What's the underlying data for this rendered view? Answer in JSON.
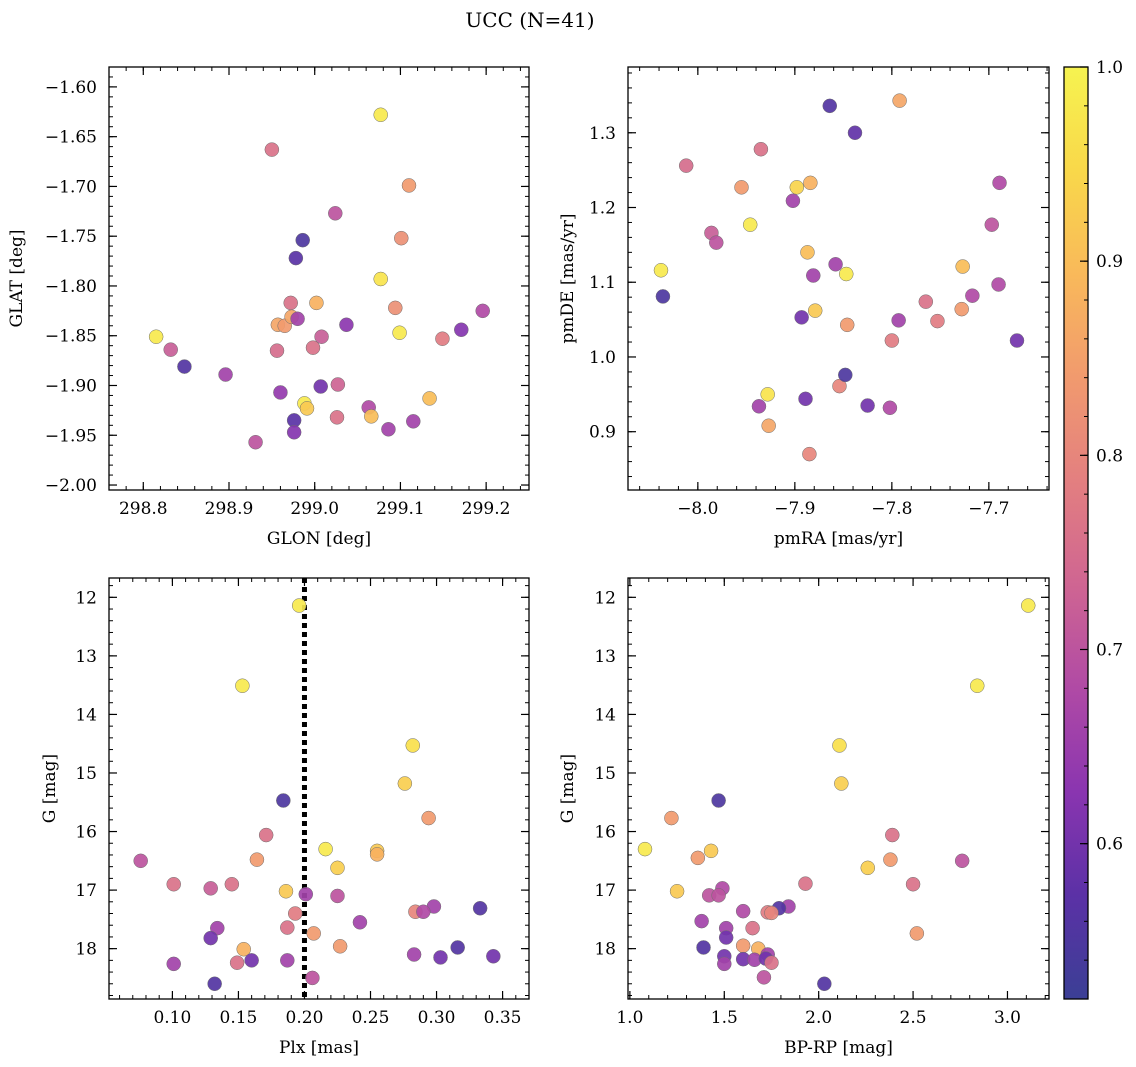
{
  "figure": {
    "title": "UCC (N=41)"
  },
  "colormap": {
    "name": "plasma",
    "range": [
      0.52,
      1.0
    ],
    "ticks": [
      "0.6",
      "0.7",
      "0.8",
      "0.9",
      "1.0"
    ],
    "tick_values": [
      0.6,
      0.7,
      0.8,
      0.9,
      1.0
    ],
    "stops": [
      "#3b3f95",
      "#5b31a6",
      "#8a35b0",
      "#b04aa5",
      "#cf6592",
      "#e37f80",
      "#f19a6e",
      "#f9b95a",
      "#f9d84a",
      "#f6f350"
    ]
  },
  "chart_data": [
    {
      "type": "scatter",
      "xlabel": "GLON [deg]",
      "ylabel": "GLAT [deg]",
      "xlim": [
        298.76,
        299.25
      ],
      "ylim": [
        -2.005,
        -1.58
      ],
      "xticks": [
        298.8,
        298.9,
        299.0,
        299.1,
        299.2
      ],
      "xtick_labels": [
        "298.8",
        "298.9",
        "299.0",
        "299.1",
        "299.2"
      ],
      "yticks": [
        -1.6,
        -1.65,
        -1.7,
        -1.75,
        -1.8,
        -1.85,
        -1.9,
        -1.95,
        -2.0
      ],
      "ytick_labels": [
        "−1.60",
        "−1.65",
        "−1.70",
        "−1.75",
        "−1.80",
        "−1.85",
        "−1.90",
        "−1.95",
        "−2.00"
      ],
      "points": [
        {
          "x": 298.815,
          "y": -1.851,
          "c": 0.98
        },
        {
          "x": 298.832,
          "y": -1.864,
          "c": 0.72
        },
        {
          "x": 298.848,
          "y": -1.881,
          "c": 0.56
        },
        {
          "x": 298.896,
          "y": -1.889,
          "c": 0.66
        },
        {
          "x": 298.931,
          "y": -1.957,
          "c": 0.7
        },
        {
          "x": 298.95,
          "y": -1.663,
          "c": 0.76
        },
        {
          "x": 298.956,
          "y": -1.865,
          "c": 0.75
        },
        {
          "x": 298.957,
          "y": -1.839,
          "c": 0.86
        },
        {
          "x": 298.96,
          "y": -1.907,
          "c": 0.64
        },
        {
          "x": 298.965,
          "y": -1.84,
          "c": 0.84
        },
        {
          "x": 298.972,
          "y": -1.817,
          "c": 0.76
        },
        {
          "x": 298.973,
          "y": -1.831,
          "c": 0.86
        },
        {
          "x": 298.976,
          "y": -1.935,
          "c": 0.57
        },
        {
          "x": 298.976,
          "y": -1.947,
          "c": 0.62
        },
        {
          "x": 298.978,
          "y": -1.772,
          "c": 0.57
        },
        {
          "x": 298.98,
          "y": -1.833,
          "c": 0.66
        },
        {
          "x": 298.986,
          "y": -1.754,
          "c": 0.55
        },
        {
          "x": 298.988,
          "y": -1.918,
          "c": 0.98
        },
        {
          "x": 298.991,
          "y": -1.923,
          "c": 0.92
        },
        {
          "x": 298.998,
          "y": -1.862,
          "c": 0.76
        },
        {
          "x": 299.002,
          "y": -1.817,
          "c": 0.88
        },
        {
          "x": 299.007,
          "y": -1.901,
          "c": 0.6
        },
        {
          "x": 299.008,
          "y": -1.851,
          "c": 0.72
        },
        {
          "x": 299.024,
          "y": -1.727,
          "c": 0.7
        },
        {
          "x": 299.026,
          "y": -1.932,
          "c": 0.76
        },
        {
          "x": 299.027,
          "y": -1.899,
          "c": 0.73
        },
        {
          "x": 299.037,
          "y": -1.839,
          "c": 0.63
        },
        {
          "x": 299.063,
          "y": -1.922,
          "c": 0.68
        },
        {
          "x": 299.066,
          "y": -1.931,
          "c": 0.9
        },
        {
          "x": 299.077,
          "y": -1.628,
          "c": 0.98
        },
        {
          "x": 299.077,
          "y": -1.793,
          "c": 0.97
        },
        {
          "x": 299.086,
          "y": -1.944,
          "c": 0.66
        },
        {
          "x": 299.094,
          "y": -1.822,
          "c": 0.82
        },
        {
          "x": 299.099,
          "y": -1.847,
          "c": 0.98
        },
        {
          "x": 299.101,
          "y": -1.752,
          "c": 0.82
        },
        {
          "x": 299.11,
          "y": -1.699,
          "c": 0.84
        },
        {
          "x": 299.115,
          "y": -1.936,
          "c": 0.66
        },
        {
          "x": 299.134,
          "y": -1.913,
          "c": 0.9
        },
        {
          "x": 299.149,
          "y": -1.853,
          "c": 0.78
        },
        {
          "x": 299.171,
          "y": -1.844,
          "c": 0.62
        },
        {
          "x": 299.196,
          "y": -1.825,
          "c": 0.68
        }
      ]
    },
    {
      "type": "scatter",
      "xlabel": "pmRA [mas/yr]",
      "ylabel": "pmDE [mas/yr]",
      "xlim": [
        -8.072,
        -7.638
      ],
      "ylim": [
        0.822,
        1.388
      ],
      "xticks": [
        -8.0,
        -7.9,
        -7.8,
        -7.7
      ],
      "xtick_labels": [
        "−8.0",
        "−7.9",
        "−7.8",
        "−7.7"
      ],
      "yticks": [
        0.9,
        1.0,
        1.1,
        1.2,
        1.3
      ],
      "ytick_labels": [
        "0.9",
        "1.0",
        "1.1",
        "1.2",
        "1.3"
      ],
      "points": [
        {
          "x": -8.038,
          "y": 1.116,
          "c": 0.98
        },
        {
          "x": -8.036,
          "y": 1.081,
          "c": 0.55
        },
        {
          "x": -8.012,
          "y": 1.256,
          "c": 0.75
        },
        {
          "x": -7.986,
          "y": 1.166,
          "c": 0.72
        },
        {
          "x": -7.981,
          "y": 1.153,
          "c": 0.7
        },
        {
          "x": -7.955,
          "y": 1.227,
          "c": 0.84
        },
        {
          "x": -7.946,
          "y": 1.177,
          "c": 0.98
        },
        {
          "x": -7.937,
          "y": 0.934,
          "c": 0.66
        },
        {
          "x": -7.935,
          "y": 1.278,
          "c": 0.76
        },
        {
          "x": -7.928,
          "y": 0.95,
          "c": 0.97
        },
        {
          "x": -7.927,
          "y": 0.908,
          "c": 0.86
        },
        {
          "x": -7.902,
          "y": 1.209,
          "c": 0.66
        },
        {
          "x": -7.898,
          "y": 1.227,
          "c": 0.94
        },
        {
          "x": -7.893,
          "y": 1.053,
          "c": 0.6
        },
        {
          "x": -7.889,
          "y": 0.944,
          "c": 0.6
        },
        {
          "x": -7.887,
          "y": 1.14,
          "c": 0.9
        },
        {
          "x": -7.885,
          "y": 0.87,
          "c": 0.8
        },
        {
          "x": -7.884,
          "y": 1.233,
          "c": 0.88
        },
        {
          "x": -7.881,
          "y": 1.109,
          "c": 0.66
        },
        {
          "x": -7.879,
          "y": 1.062,
          "c": 0.92
        },
        {
          "x": -7.864,
          "y": 1.336,
          "c": 0.56
        },
        {
          "x": -7.858,
          "y": 1.124,
          "c": 0.66
        },
        {
          "x": -7.854,
          "y": 0.961,
          "c": 0.8
        },
        {
          "x": -7.848,
          "y": 0.976,
          "c": 0.55
        },
        {
          "x": -7.847,
          "y": 1.111,
          "c": 0.98
        },
        {
          "x": -7.846,
          "y": 1.043,
          "c": 0.84
        },
        {
          "x": -7.838,
          "y": 1.3,
          "c": 0.58
        },
        {
          "x": -7.825,
          "y": 0.935,
          "c": 0.6
        },
        {
          "x": -7.802,
          "y": 0.932,
          "c": 0.68
        },
        {
          "x": -7.8,
          "y": 1.022,
          "c": 0.78
        },
        {
          "x": -7.793,
          "y": 1.049,
          "c": 0.66
        },
        {
          "x": -7.792,
          "y": 1.343,
          "c": 0.86
        },
        {
          "x": -7.765,
          "y": 1.074,
          "c": 0.76
        },
        {
          "x": -7.753,
          "y": 1.048,
          "c": 0.78
        },
        {
          "x": -7.728,
          "y": 1.064,
          "c": 0.84
        },
        {
          "x": -7.727,
          "y": 1.121,
          "c": 0.9
        },
        {
          "x": -7.717,
          "y": 1.082,
          "c": 0.68
        },
        {
          "x": -7.697,
          "y": 1.177,
          "c": 0.7
        },
        {
          "x": -7.69,
          "y": 1.097,
          "c": 0.68
        },
        {
          "x": -7.689,
          "y": 1.233,
          "c": 0.68
        },
        {
          "x": -7.671,
          "y": 1.022,
          "c": 0.6
        }
      ]
    },
    {
      "type": "scatter",
      "xlabel": "Plx [mas]",
      "ylabel": "G [mag]",
      "xlim": [
        0.052,
        0.37
      ],
      "ylim": [
        18.86,
        11.67
      ],
      "xticks": [
        0.1,
        0.15,
        0.2,
        0.25,
        0.3,
        0.35
      ],
      "xtick_labels": [
        "0.10",
        "0.15",
        "0.20",
        "0.25",
        "0.30",
        "0.35"
      ],
      "yticks": [
        12,
        13,
        14,
        15,
        16,
        17,
        18
      ],
      "ytick_labels": [
        "12",
        "13",
        "14",
        "15",
        "16",
        "17",
        "18"
      ],
      "vline": {
        "x": 0.2,
        "style": "dotted",
        "color": "#000000"
      },
      "points": [
        {
          "x": 0.196,
          "y": 12.14,
          "c": 0.98
        },
        {
          "x": 0.153,
          "y": 13.51,
          "c": 0.98
        },
        {
          "x": 0.282,
          "y": 14.53,
          "c": 0.96
        },
        {
          "x": 0.276,
          "y": 15.18,
          "c": 0.93
        },
        {
          "x": 0.184,
          "y": 15.47,
          "c": 0.55
        },
        {
          "x": 0.294,
          "y": 15.77,
          "c": 0.84
        },
        {
          "x": 0.171,
          "y": 16.06,
          "c": 0.76
        },
        {
          "x": 0.216,
          "y": 16.3,
          "c": 0.98
        },
        {
          "x": 0.255,
          "y": 16.33,
          "c": 0.92
        },
        {
          "x": 0.255,
          "y": 16.39,
          "c": 0.88
        },
        {
          "x": 0.076,
          "y": 16.5,
          "c": 0.7
        },
        {
          "x": 0.164,
          "y": 16.48,
          "c": 0.84
        },
        {
          "x": 0.225,
          "y": 16.62,
          "c": 0.93
        },
        {
          "x": 0.101,
          "y": 16.9,
          "c": 0.76
        },
        {
          "x": 0.145,
          "y": 16.9,
          "c": 0.76
        },
        {
          "x": 0.129,
          "y": 16.97,
          "c": 0.72
        },
        {
          "x": 0.186,
          "y": 17.02,
          "c": 0.92
        },
        {
          "x": 0.201,
          "y": 17.07,
          "c": 0.66
        },
        {
          "x": 0.225,
          "y": 17.1,
          "c": 0.7
        },
        {
          "x": 0.298,
          "y": 17.28,
          "c": 0.66
        },
        {
          "x": 0.333,
          "y": 17.31,
          "c": 0.56
        },
        {
          "x": 0.284,
          "y": 17.37,
          "c": 0.8
        },
        {
          "x": 0.29,
          "y": 17.37,
          "c": 0.68
        },
        {
          "x": 0.193,
          "y": 17.4,
          "c": 0.78
        },
        {
          "x": 0.242,
          "y": 17.55,
          "c": 0.66
        },
        {
          "x": 0.187,
          "y": 17.64,
          "c": 0.76
        },
        {
          "x": 0.134,
          "y": 17.65,
          "c": 0.66
        },
        {
          "x": 0.207,
          "y": 17.74,
          "c": 0.84
        },
        {
          "x": 0.129,
          "y": 17.82,
          "c": 0.6
        },
        {
          "x": 0.227,
          "y": 17.96,
          "c": 0.84
        },
        {
          "x": 0.316,
          "y": 17.98,
          "c": 0.56
        },
        {
          "x": 0.154,
          "y": 18.01,
          "c": 0.88
        },
        {
          "x": 0.283,
          "y": 18.1,
          "c": 0.66
        },
        {
          "x": 0.343,
          "y": 18.13,
          "c": 0.6
        },
        {
          "x": 0.303,
          "y": 18.15,
          "c": 0.6
        },
        {
          "x": 0.16,
          "y": 18.2,
          "c": 0.6
        },
        {
          "x": 0.187,
          "y": 18.2,
          "c": 0.66
        },
        {
          "x": 0.149,
          "y": 18.24,
          "c": 0.76
        },
        {
          "x": 0.101,
          "y": 18.26,
          "c": 0.66
        },
        {
          "x": 0.206,
          "y": 18.5,
          "c": 0.7
        },
        {
          "x": 0.132,
          "y": 18.6,
          "c": 0.56
        }
      ]
    },
    {
      "type": "scatter",
      "xlabel": "BP-RP [mag]",
      "ylabel": "G [mag]",
      "xlim": [
        0.99,
        3.22
      ],
      "ylim": [
        18.86,
        11.67
      ],
      "xticks": [
        1.0,
        1.5,
        2.0,
        2.5,
        3.0
      ],
      "xtick_labels": [
        "1.0",
        "1.5",
        "2.0",
        "2.5",
        "3.0"
      ],
      "yticks": [
        12,
        13,
        14,
        15,
        16,
        17,
        18
      ],
      "ytick_labels": [
        "12",
        "13",
        "14",
        "15",
        "16",
        "17",
        "18"
      ],
      "points": [
        {
          "x": 3.11,
          "y": 12.14,
          "c": 0.98
        },
        {
          "x": 2.84,
          "y": 13.51,
          "c": 0.98
        },
        {
          "x": 2.11,
          "y": 14.53,
          "c": 0.96
        },
        {
          "x": 2.12,
          "y": 15.18,
          "c": 0.93
        },
        {
          "x": 1.47,
          "y": 15.47,
          "c": 0.55
        },
        {
          "x": 1.22,
          "y": 15.77,
          "c": 0.84
        },
        {
          "x": 2.39,
          "y": 16.06,
          "c": 0.76
        },
        {
          "x": 1.08,
          "y": 16.3,
          "c": 0.98
        },
        {
          "x": 1.43,
          "y": 16.33,
          "c": 0.92
        },
        {
          "x": 1.36,
          "y": 16.45,
          "c": 0.84
        },
        {
          "x": 2.38,
          "y": 16.48,
          "c": 0.84
        },
        {
          "x": 2.76,
          "y": 16.5,
          "c": 0.7
        },
        {
          "x": 2.26,
          "y": 16.62,
          "c": 0.93
        },
        {
          "x": 1.93,
          "y": 16.89,
          "c": 0.76
        },
        {
          "x": 2.5,
          "y": 16.9,
          "c": 0.76
        },
        {
          "x": 1.49,
          "y": 16.97,
          "c": 0.68
        },
        {
          "x": 1.25,
          "y": 17.02,
          "c": 0.92
        },
        {
          "x": 1.42,
          "y": 17.09,
          "c": 0.7
        },
        {
          "x": 1.47,
          "y": 17.09,
          "c": 0.7
        },
        {
          "x": 1.84,
          "y": 17.28,
          "c": 0.66
        },
        {
          "x": 1.79,
          "y": 17.31,
          "c": 0.56
        },
        {
          "x": 1.6,
          "y": 17.36,
          "c": 0.68
        },
        {
          "x": 1.73,
          "y": 17.38,
          "c": 0.78
        },
        {
          "x": 1.75,
          "y": 17.39,
          "c": 0.8
        },
        {
          "x": 1.38,
          "y": 17.53,
          "c": 0.66
        },
        {
          "x": 1.65,
          "y": 17.65,
          "c": 0.76
        },
        {
          "x": 1.51,
          "y": 17.65,
          "c": 0.66
        },
        {
          "x": 2.52,
          "y": 17.74,
          "c": 0.84
        },
        {
          "x": 1.51,
          "y": 17.81,
          "c": 0.6
        },
        {
          "x": 1.6,
          "y": 17.95,
          "c": 0.84
        },
        {
          "x": 1.39,
          "y": 17.98,
          "c": 0.56
        },
        {
          "x": 1.68,
          "y": 18.0,
          "c": 0.88
        },
        {
          "x": 1.73,
          "y": 18.1,
          "c": 0.66
        },
        {
          "x": 1.5,
          "y": 18.13,
          "c": 0.6
        },
        {
          "x": 1.6,
          "y": 18.18,
          "c": 0.6
        },
        {
          "x": 1.66,
          "y": 18.19,
          "c": 0.66
        },
        {
          "x": 1.72,
          "y": 18.17,
          "c": 0.6
        },
        {
          "x": 1.75,
          "y": 18.24,
          "c": 0.76
        },
        {
          "x": 1.5,
          "y": 18.26,
          "c": 0.66
        },
        {
          "x": 1.71,
          "y": 18.49,
          "c": 0.7
        },
        {
          "x": 2.03,
          "y": 18.6,
          "c": 0.56
        }
      ]
    }
  ]
}
